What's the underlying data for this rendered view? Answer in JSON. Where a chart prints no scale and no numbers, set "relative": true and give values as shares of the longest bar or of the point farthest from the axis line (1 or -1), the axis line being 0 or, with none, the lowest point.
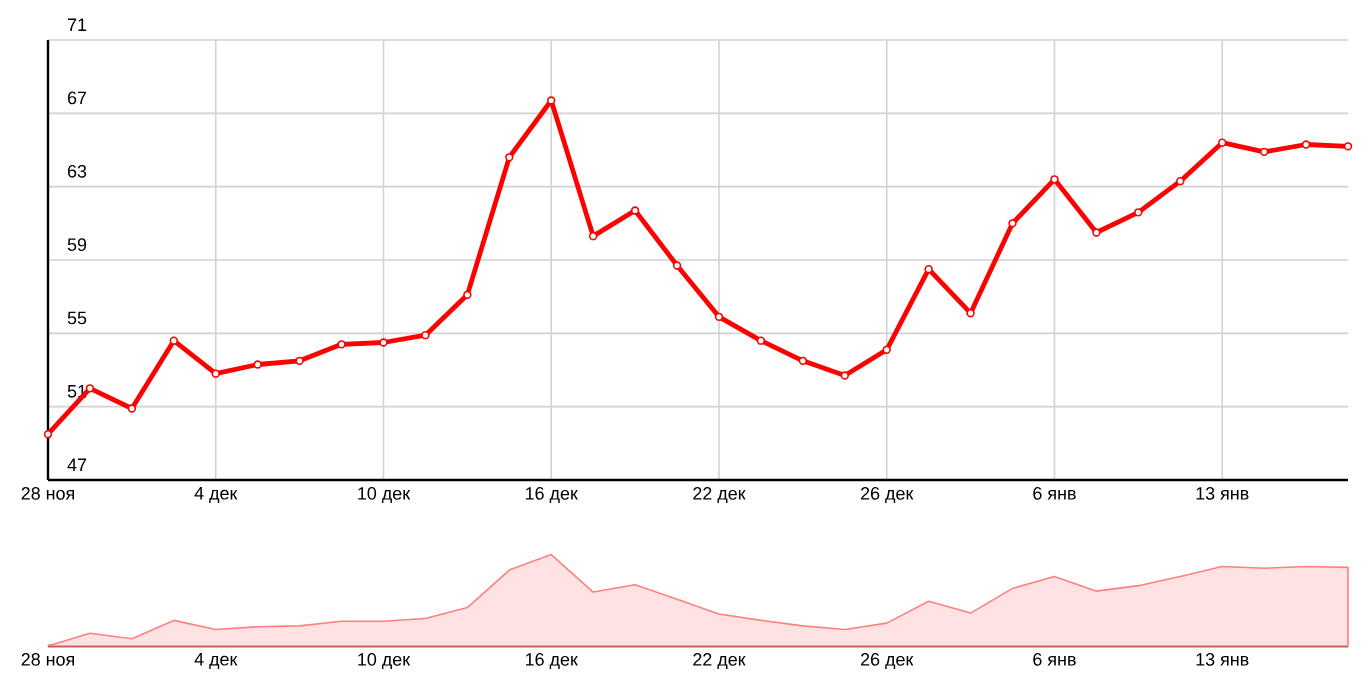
{
  "chart_data": [
    {
      "type": "line",
      "categories": [
        "28 ноя",
        null,
        null,
        null,
        "4 дек",
        null,
        null,
        null,
        "10 дек",
        null,
        null,
        null,
        "16 дек",
        null,
        null,
        null,
        "22 дек",
        null,
        null,
        null,
        "26 дек",
        null,
        null,
        null,
        "6 янв",
        null,
        null,
        null,
        "13 янв",
        null,
        null,
        null
      ],
      "series": [
        {
          "color": "#ff0000",
          "values": [
            49.5,
            52.0,
            50.9,
            54.6,
            52.8,
            53.3,
            53.5,
            54.4,
            54.5,
            54.9,
            57.1,
            64.6,
            67.7,
            60.3,
            61.7,
            58.7,
            55.9,
            54.6,
            53.5,
            52.7,
            54.1,
            58.5,
            56.1,
            61.0,
            63.4,
            60.5,
            61.6,
            63.3,
            65.4,
            64.9,
            65.3,
            65.2
          ]
        }
      ],
      "ylim": [
        47,
        71
      ],
      "yticks": [
        47,
        51,
        55,
        59,
        63,
        67,
        71
      ],
      "grid": true,
      "marker": "circle",
      "line_style": "solid"
    },
    {
      "type": "area",
      "relative": true,
      "categories": [
        "28 ноя",
        null,
        null,
        null,
        "4 дек",
        null,
        null,
        null,
        "10 дек",
        null,
        null,
        null,
        "16 дек",
        null,
        null,
        null,
        "22 дек",
        null,
        null,
        null,
        "26 дек",
        null,
        null,
        null,
        "6 янв",
        null,
        null,
        null,
        "13 янв",
        null,
        null,
        null
      ],
      "series": [
        {
          "color": "#ff8080",
          "values": [
            0,
            0.14,
            0.08,
            0.28,
            0.18,
            0.21,
            0.22,
            0.27,
            0.27,
            0.3,
            0.42,
            0.83,
            1,
            0.59,
            0.67,
            0.51,
            0.35,
            0.28,
            0.22,
            0.18,
            0.25,
            0.49,
            0.36,
            0.63,
            0.76,
            0.6,
            0.66,
            0.76,
            0.87,
            0.85,
            0.87,
            0.86
          ]
        }
      ]
    }
  ]
}
